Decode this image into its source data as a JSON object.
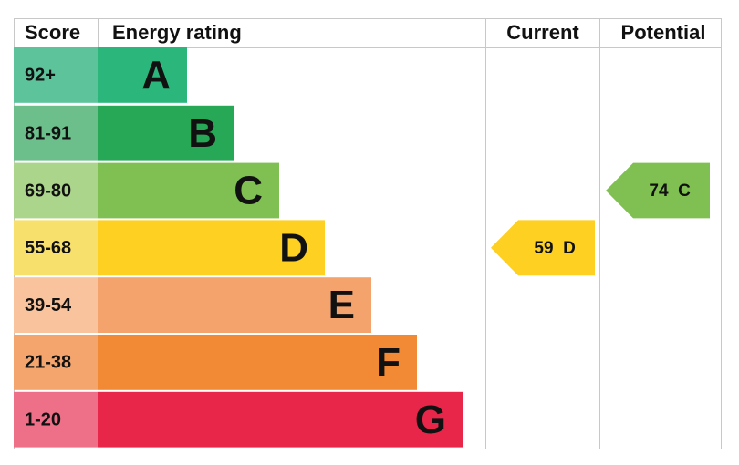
{
  "header": {
    "score": "Score",
    "rating": "Energy rating",
    "current": "Current",
    "potential": "Potential"
  },
  "bands": [
    {
      "score": "92+",
      "letter": "A",
      "color": "#2bb77b",
      "cell_color": "#5cc39a"
    },
    {
      "score": "81-91",
      "letter": "B",
      "color": "#27a857",
      "cell_color": "#6cbf8a"
    },
    {
      "score": "69-80",
      "letter": "C",
      "color": "#80c052",
      "cell_color": "#abd58b"
    },
    {
      "score": "55-68",
      "letter": "D",
      "color": "#fdd022",
      "cell_color": "#f8e06c"
    },
    {
      "score": "39-54",
      "letter": "E",
      "color": "#f5a36d",
      "cell_color": "#f9c39e"
    },
    {
      "score": "21-38",
      "letter": "F",
      "color": "#f28a35",
      "cell_color": "#f4a56d"
    },
    {
      "score": "1-20",
      "letter": "G",
      "color": "#e8264a",
      "cell_color": "#ed7088"
    }
  ],
  "current": {
    "value": 59,
    "rating": "D"
  },
  "potential": {
    "value": 74,
    "rating": "C"
  }
}
